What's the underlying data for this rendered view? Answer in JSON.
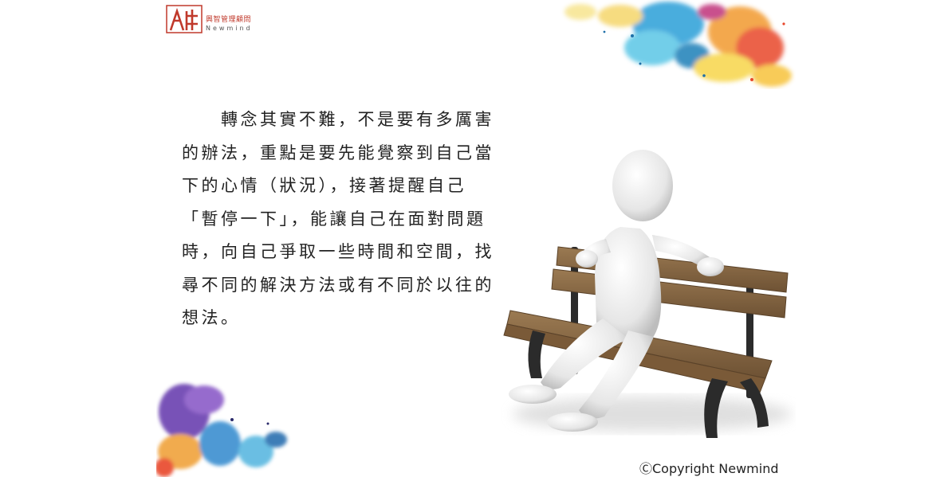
{
  "logo": {
    "name_cn": "興智管理顧問",
    "name_en": "Newmind"
  },
  "body": {
    "lines": [
      "　　轉念其實不難，不是要有多厲害",
      "的辦法，重點是要先能覺察到自己當",
      "下的心情（狀況），接著提醒自己",
      "「暫停一下」，能讓自己在面對問題",
      "時，向自己爭取一些時間和空間，找",
      "尋不同的解決方法或有不同於以往的",
      "想法。"
    ]
  },
  "copyright": "ⒸCopyright Newmind",
  "colors": {
    "logo_red": "#c0392b",
    "text": "#222222",
    "bench_wood": "#8b6a45",
    "bench_metal": "#2b2b2b"
  },
  "icons": [
    "newmind-logo-icon",
    "watercolor-splash",
    "figure-on-bench-illustration"
  ]
}
